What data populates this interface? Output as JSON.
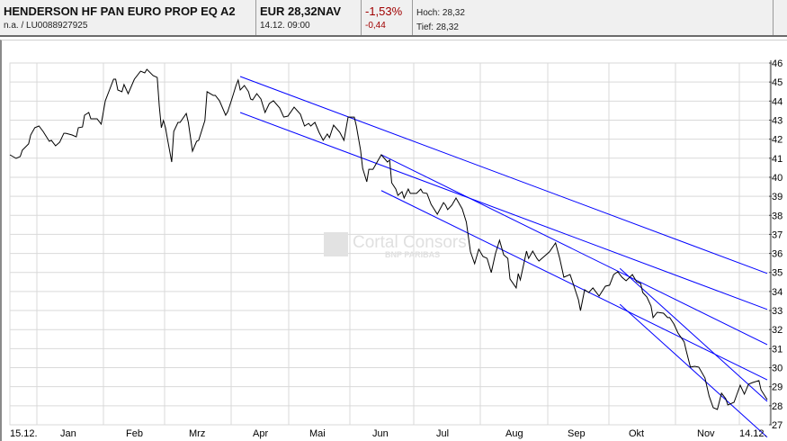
{
  "header": {
    "fund_name": "HENDERSON HF PAN EURO PROP EQ A2",
    "wkn_isin": "n.a.  /  LU0088927925",
    "price": "EUR 28,32NAV",
    "timestamp": "14.12. 09:00",
    "change_pct": "-1,53%",
    "change_abs": "-0,44",
    "high": "Hoch: 28,32",
    "low": "Tief: 28,32"
  },
  "watermark": {
    "line1": "Cortal Consors",
    "line2": "BNP PARIBAS"
  },
  "colors": {
    "price_line": "#000000",
    "trend_lines": "#0000ff",
    "negative": "#a00000",
    "grid": "#d9d9d9"
  },
  "chart_data": {
    "type": "line",
    "title": "",
    "xlabel": "",
    "ylabel": "",
    "ylim": [
      27,
      46
    ],
    "y_ticks": [
      "27",
      "28",
      "29",
      "30",
      "31",
      "32",
      "33",
      "34",
      "35",
      "36",
      "37",
      "38",
      "39",
      "40",
      "41",
      "42",
      "43",
      "44",
      "45",
      "46"
    ],
    "y_axis_position": "right",
    "grid": true,
    "x_tick_labels": [
      "15.12.",
      "Jan",
      "Feb",
      "Mrz",
      "Apr",
      "Mai",
      "Jun",
      "Jul",
      "Aug",
      "Sep",
      "Okt",
      "Nov",
      "14.12."
    ],
    "series": [
      {
        "points": [
          [
            "15.12.",
            41.18
          ],
          [
            "18.12.",
            40.99
          ],
          [
            "20.12.",
            41.09
          ],
          [
            "21.12.",
            41.42
          ],
          [
            "24.12.",
            41.75
          ],
          [
            "25.12.",
            42.22
          ],
          [
            "27.12.",
            42.6
          ],
          [
            "29.12.",
            42.69
          ],
          [
            "31.12.",
            42.41
          ],
          [
            "03.01.",
            41.89
          ],
          [
            "04.01.",
            41.94
          ],
          [
            "06.01.",
            41.65
          ],
          [
            "08.01.",
            41.84
          ],
          [
            "10.01.",
            42.31
          ],
          [
            "11.01.",
            42.31
          ],
          [
            "14.01.",
            42.22
          ],
          [
            "16.01.",
            42.12
          ],
          [
            "17.01.",
            42.6
          ],
          [
            "19.01.",
            42.64
          ],
          [
            "20.01.",
            43.26
          ],
          [
            "22.01.",
            43.4
          ],
          [
            "23.01.",
            43.07
          ],
          [
            "26.01.",
            43.07
          ],
          [
            "28.01.",
            42.79
          ],
          [
            "30.01.",
            44.02
          ],
          [
            "01.02.",
            44.58
          ],
          [
            "03.02.",
            45.15
          ],
          [
            "04.02.",
            45.15
          ],
          [
            "05.02.",
            44.58
          ],
          [
            "07.02.",
            44.49
          ],
          [
            "08.02.",
            44.87
          ],
          [
            "10.02.",
            44.39
          ],
          [
            "13.02.",
            45.15
          ],
          [
            "16.02.",
            45.57
          ],
          [
            "18.02.",
            45.48
          ],
          [
            "19.02.",
            45.67
          ],
          [
            "22.02.",
            45.34
          ],
          [
            "24.02.",
            45.24
          ],
          [
            "25.02.",
            43.73
          ],
          [
            "26.02.",
            42.6
          ],
          [
            "27.02.",
            42.98
          ],
          [
            "28.02.",
            42.6
          ],
          [
            "29.02.",
            41.98
          ],
          [
            "02.03.",
            40.8
          ],
          [
            "03.03.",
            42.41
          ],
          [
            "05.03.",
            42.88
          ],
          [
            "06.03.",
            42.88
          ],
          [
            "09.03.",
            43.35
          ],
          [
            "10.03.",
            42.88
          ],
          [
            "12.03.",
            41.37
          ],
          [
            "14.03.",
            41.89
          ],
          [
            "15.03.",
            41.94
          ],
          [
            "18.03.",
            42.98
          ],
          [
            "19.03.",
            44.49
          ],
          [
            "22.03.",
            44.3
          ],
          [
            "23.03.",
            44.3
          ],
          [
            "25.03.",
            44.02
          ],
          [
            "28.03.",
            43.26
          ],
          [
            "29.03.",
            43.45
          ],
          [
            "31.03.",
            44.11
          ],
          [
            "02.04.",
            44.82
          ],
          [
            "03.04.",
            45.1
          ],
          [
            "04.04.",
            44.58
          ],
          [
            "06.04.",
            44.82
          ],
          [
            "08.04.",
            44.49
          ],
          [
            "09.04.",
            44.11
          ],
          [
            "10.04.",
            44.06
          ],
          [
            "12.04.",
            44.39
          ],
          [
            "14.04.",
            44.11
          ],
          [
            "16.04.",
            43.4
          ],
          [
            "18.04.",
            43.87
          ],
          [
            "20.04.",
            44.02
          ],
          [
            "23.04.",
            43.64
          ],
          [
            "25.04.",
            43.16
          ],
          [
            "27.04.",
            43.21
          ],
          [
            "30.04.",
            43.68
          ],
          [
            "03.05.",
            43.31
          ],
          [
            "05.05.",
            42.69
          ],
          [
            "07.05.",
            42.83
          ],
          [
            "08.05.",
            42.69
          ],
          [
            "10.05.",
            42.88
          ],
          [
            "12.05.",
            42.36
          ],
          [
            "14.05.",
            41.94
          ],
          [
            "16.05.",
            42.27
          ],
          [
            "17.05.",
            42.08
          ],
          [
            "19.05.",
            42.74
          ],
          [
            "22.05.",
            42.36
          ],
          [
            "24.05.",
            41.94
          ],
          [
            "26.05.",
            43.16
          ],
          [
            "29.05.",
            43.16
          ],
          [
            "30.05.",
            42.69
          ],
          [
            "01.06.",
            41.42
          ],
          [
            "02.06.",
            40.47
          ],
          [
            "04.06.",
            39.76
          ],
          [
            "05.06.",
            40.42
          ],
          [
            "07.06.",
            40.42
          ],
          [
            "11.06.",
            41.18
          ],
          [
            "14.06.",
            40.8
          ],
          [
            "15.06.",
            40.9
          ],
          [
            "16.06.",
            39.71
          ],
          [
            "18.06.",
            39.38
          ],
          [
            "19.06.",
            39.05
          ],
          [
            "21.06.",
            39.24
          ],
          [
            "22.06.",
            38.91
          ],
          [
            "24.06.",
            39.38
          ],
          [
            "25.06.",
            39.15
          ],
          [
            "28.06.",
            39.15
          ],
          [
            "30.06.",
            39.38
          ],
          [
            "01.07.",
            39.19
          ],
          [
            "03.07.",
            39.15
          ],
          [
            "05.07.",
            38.58
          ],
          [
            "08.07.",
            38.06
          ],
          [
            "11.07.",
            38.67
          ],
          [
            "12.07.",
            38.53
          ],
          [
            "13.07.",
            38.3
          ],
          [
            "15.07.",
            38.53
          ],
          [
            "17.07.",
            38.91
          ],
          [
            "20.07.",
            38.34
          ],
          [
            "22.07.",
            37.64
          ],
          [
            "24.07.",
            36.08
          ],
          [
            "26.07.",
            35.46
          ],
          [
            "28.07.",
            36.22
          ],
          [
            "30.07.",
            35.84
          ],
          [
            "01.08.",
            35.74
          ],
          [
            "03.08.",
            34.99
          ],
          [
            "05.08.",
            35.98
          ],
          [
            "07.08.",
            36.69
          ],
          [
            "09.08.",
            35.93
          ],
          [
            "11.08.",
            35.74
          ],
          [
            "12.08.",
            34.66
          ],
          [
            "15.08.",
            34.19
          ],
          [
            "16.08.",
            34.94
          ],
          [
            "17.08.",
            34.61
          ],
          [
            "20.08.",
            36.12
          ],
          [
            "21.08.",
            35.74
          ],
          [
            "23.08.",
            36.12
          ],
          [
            "25.08.",
            35.74
          ],
          [
            "26.08.",
            35.6
          ],
          [
            "31.08.",
            36.08
          ],
          [
            "03.09.",
            36.55
          ],
          [
            "05.09.",
            35.74
          ],
          [
            "07.09.",
            34.75
          ],
          [
            "10.09.",
            34.89
          ],
          [
            "11.09.",
            34.56
          ],
          [
            "14.09.",
            33.57
          ],
          [
            "15.09.",
            33.0
          ],
          [
            "17.09.",
            34.09
          ],
          [
            "19.09.",
            33.95
          ],
          [
            "21.09.",
            34.19
          ],
          [
            "24.09.",
            33.76
          ],
          [
            "27.09.",
            34.28
          ],
          [
            "29.09.",
            34.33
          ],
          [
            "01.10.",
            34.89
          ],
          [
            "03.10.",
            35.04
          ],
          [
            "05.10.",
            34.75
          ],
          [
            "07.10.",
            34.56
          ],
          [
            "10.10.",
            34.89
          ],
          [
            "12.10.",
            34.52
          ],
          [
            "14.10.",
            34.42
          ],
          [
            "15.10.",
            33.95
          ],
          [
            "17.10.",
            33.71
          ],
          [
            "19.10.",
            33.24
          ],
          [
            "20.10.",
            32.63
          ],
          [
            "22.10.",
            32.91
          ],
          [
            "25.10.",
            32.86
          ],
          [
            "27.10.",
            32.63
          ],
          [
            "28.10.",
            32.63
          ],
          [
            "30.10.",
            32.3
          ],
          [
            "01.11.",
            31.82
          ],
          [
            "04.11.",
            31.35
          ],
          [
            "05.11.",
            30.88
          ],
          [
            "07.11.",
            30.03
          ],
          [
            "09.11.",
            30.07
          ],
          [
            "11.11.",
            30.03
          ],
          [
            "14.11.",
            29.46
          ],
          [
            "16.11.",
            28.51
          ],
          [
            "18.11.",
            27.9
          ],
          [
            "20.11.",
            27.81
          ],
          [
            "22.11.",
            28.66
          ],
          [
            "24.11.",
            28.37
          ],
          [
            "25.11.",
            28.04
          ],
          [
            "28.11.",
            28.18
          ],
          [
            "01.12.",
            29.08
          ],
          [
            "03.12.",
            28.61
          ],
          [
            "05.12.",
            29.13
          ],
          [
            "07.12.",
            29.22
          ],
          [
            "10.12.",
            29.32
          ],
          [
            "11.12.",
            28.84
          ],
          [
            "14.12.",
            28.32
          ]
        ]
      }
    ],
    "trend_lines": [
      {
        "from": [
          "04.04.",
          45.29
        ],
        "to": [
          "14.12.",
          34.95
        ]
      },
      {
        "from": [
          "04.04.",
          43.4
        ],
        "to": [
          "14.12.",
          33.06
        ]
      },
      {
        "from": [
          "11.06.",
          41.18
        ],
        "to": [
          "14.12.",
          31.21
        ]
      },
      {
        "from": [
          "11.06.",
          39.3
        ],
        "to": [
          "14.12.",
          29.36
        ]
      },
      {
        "from": [
          "04.10.",
          35.21
        ],
        "to": [
          "14.12.",
          28.23
        ]
      },
      {
        "from": [
          "04.10.",
          33.33
        ],
        "to": [
          "14.12.",
          26.35
        ]
      }
    ]
  }
}
